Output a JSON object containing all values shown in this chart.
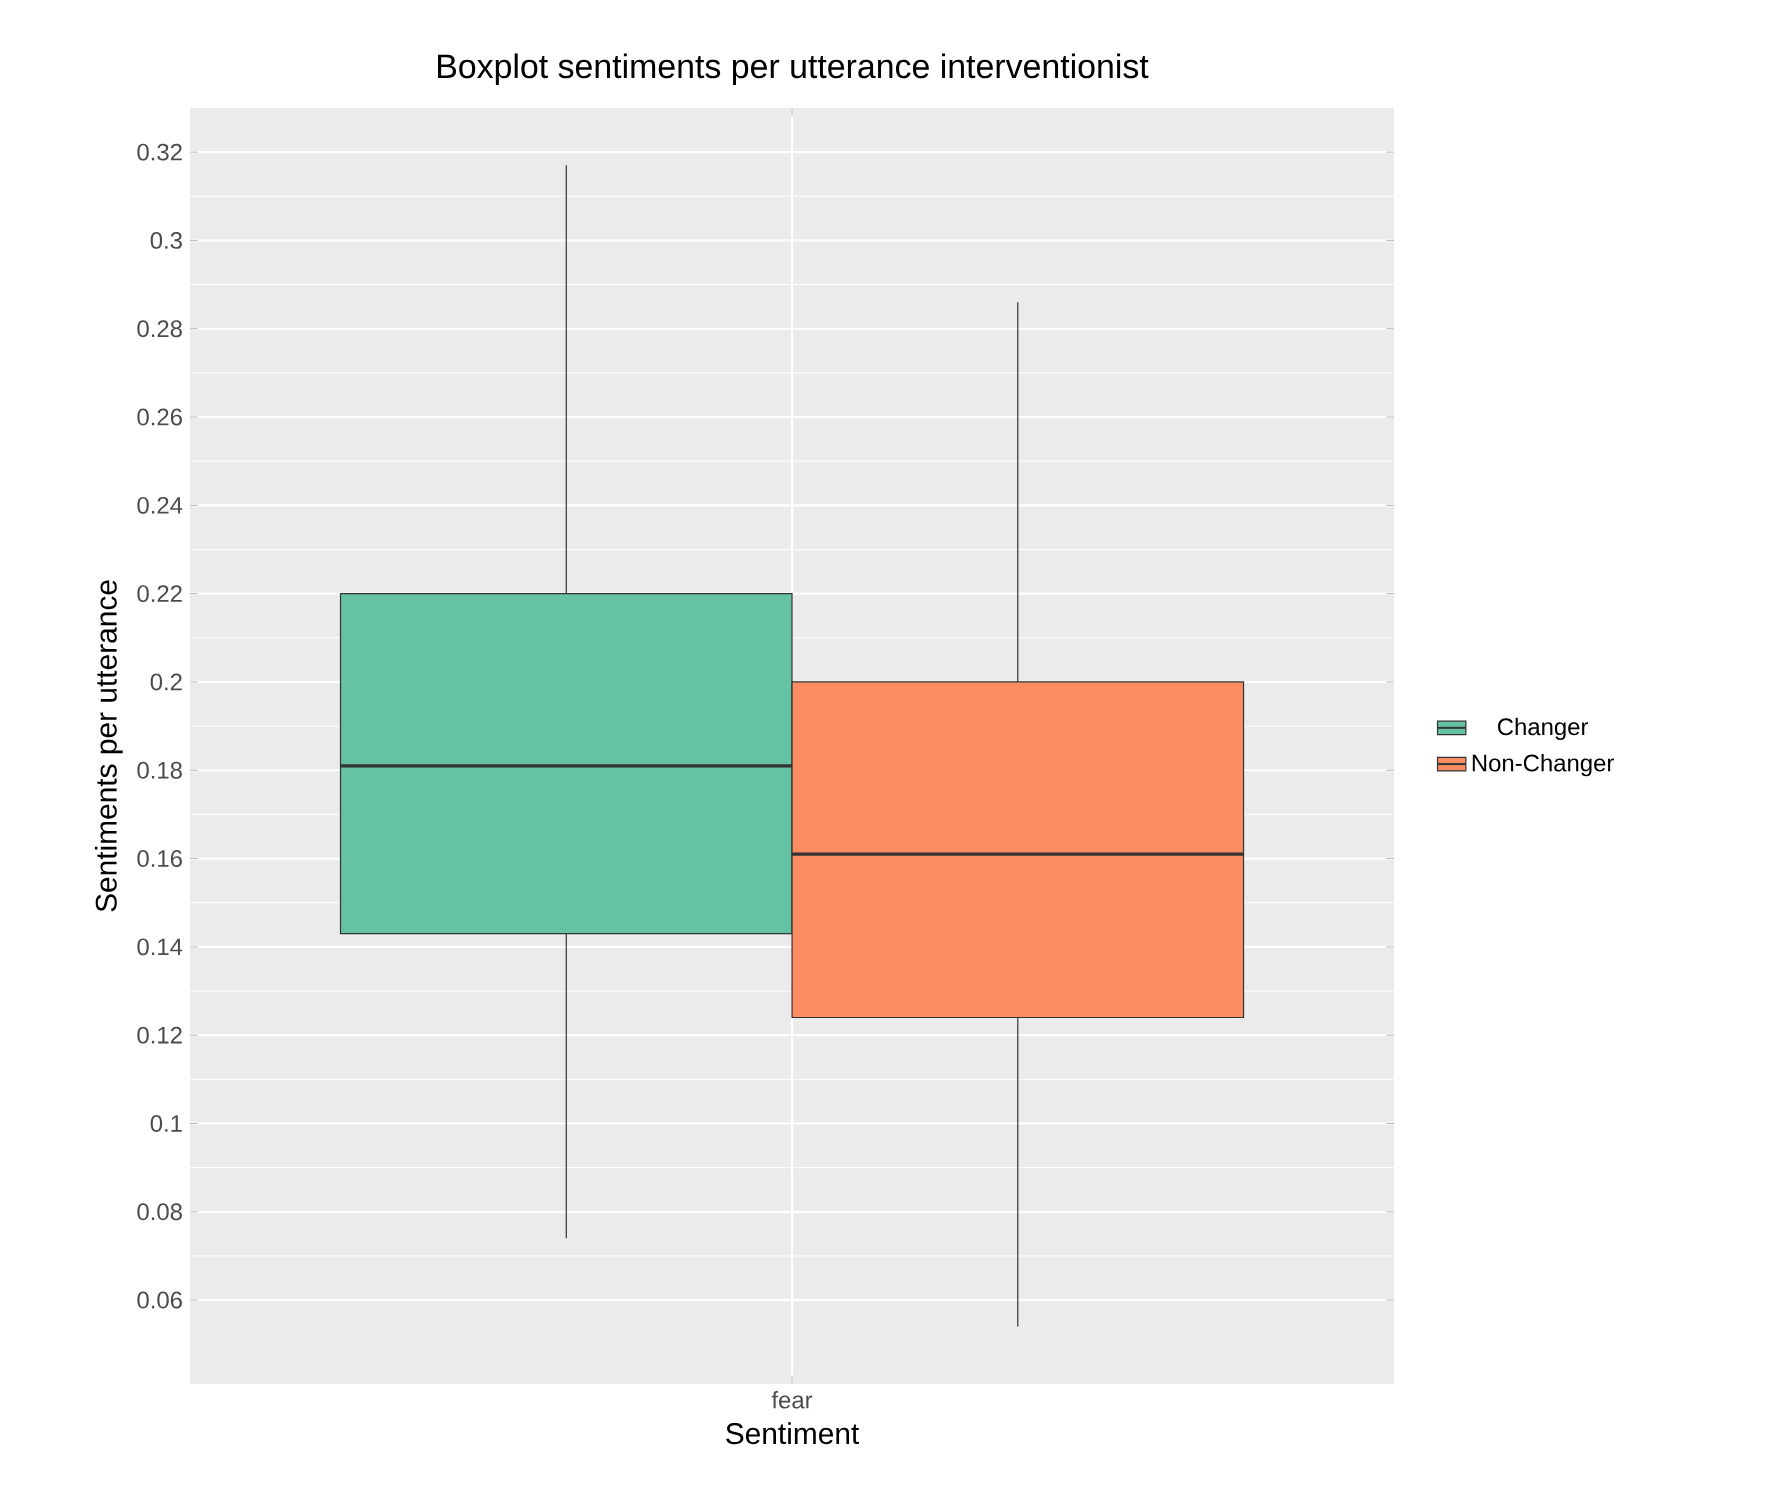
{
  "chart_data": {
    "type": "box",
    "title": "Boxplot sentiments per utterance interventionist",
    "xlabel": "Sentiment",
    "ylabel": "Sentiments per utterance",
    "categories": [
      "fear"
    ],
    "series": [
      {
        "name": "Changer",
        "color": "#66c2a5",
        "boxes": [
          {
            "low": 0.074,
            "q1": 0.143,
            "median": 0.181,
            "q3": 0.22,
            "high": 0.317
          }
        ]
      },
      {
        "name": "Non-Changer",
        "color": "#fc8d62",
        "boxes": [
          {
            "low": 0.054,
            "q1": 0.124,
            "median": 0.161,
            "q3": 0.2,
            "high": 0.286
          }
        ]
      }
    ],
    "ylim": [
      0.041,
      0.33
    ],
    "yticks": [
      0.06,
      0.08,
      0.1,
      0.12,
      0.14,
      0.16,
      0.18,
      0.2,
      0.22,
      0.24,
      0.26,
      0.28,
      0.3,
      0.32
    ],
    "grid": true,
    "legend": "right"
  }
}
